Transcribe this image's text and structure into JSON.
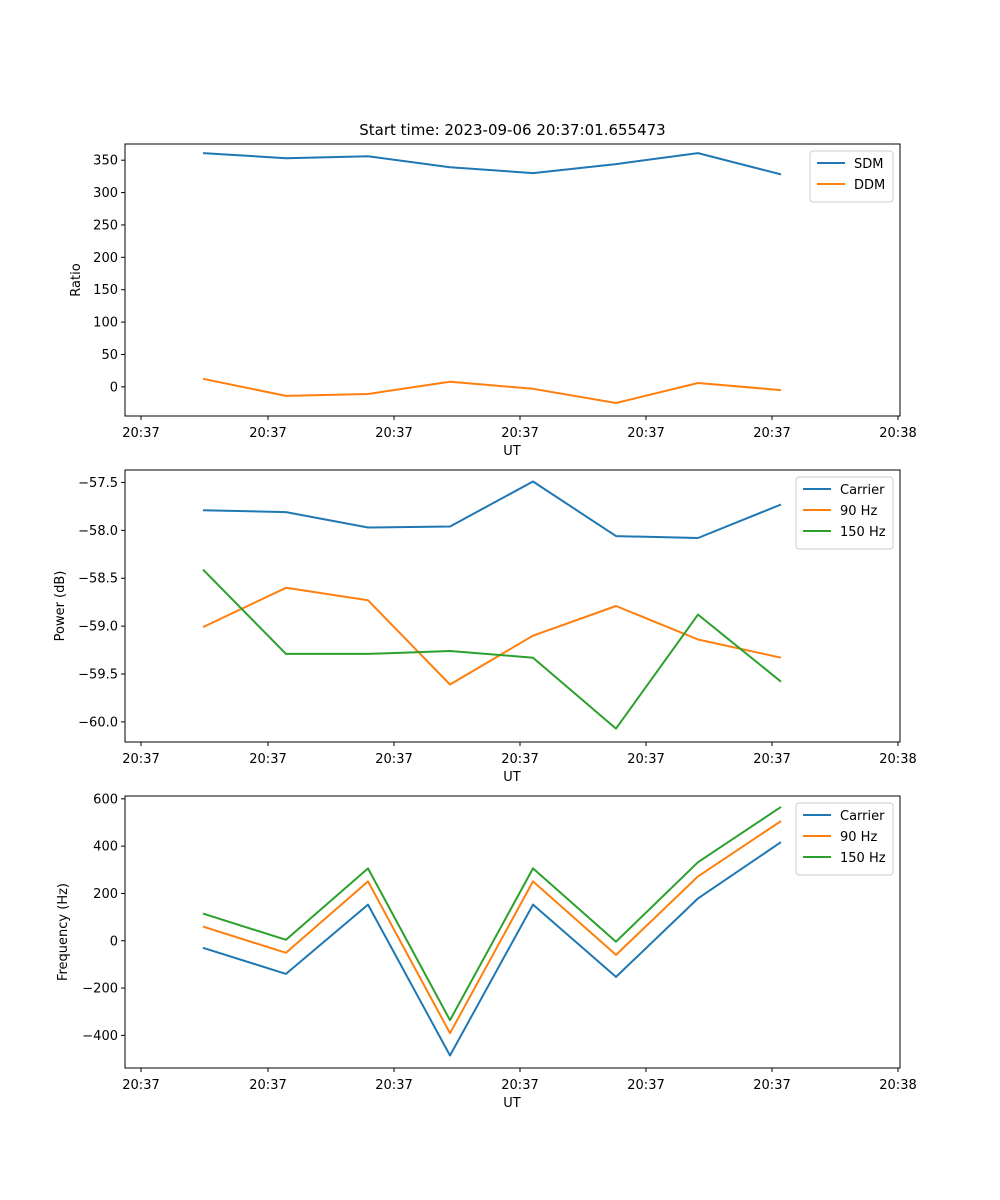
{
  "figure_title": "Start time: 2023-09-06 20:37:01.655473",
  "chart_data": [
    {
      "type": "line",
      "title": "Start time: 2023-09-06 20:37:01.655473",
      "xlabel": "UT",
      "ylabel": "Ratio",
      "x_tick_labels": [
        "20:37",
        "20:37",
        "20:37",
        "20:37",
        "20:37",
        "20:37",
        "20:38"
      ],
      "y_ticks": [
        0,
        50,
        100,
        150,
        200,
        250,
        300,
        350
      ],
      "y_tick_labels": [
        "0",
        "50",
        "100",
        "150",
        "200",
        "250",
        "300",
        "350"
      ],
      "ylim": [
        -45,
        375
      ],
      "legend": "top-right",
      "grid": false,
      "series": [
        {
          "name": "SDM",
          "color": "#1f77b4",
          "values": [
            361,
            353,
            356,
            339,
            330,
            344,
            361,
            328
          ]
        },
        {
          "name": "DDM",
          "color": "#ff7f0e",
          "values": [
            12.5,
            -14,
            -11,
            8,
            -3,
            -25,
            6,
            -5
          ]
        }
      ]
    },
    {
      "type": "line",
      "title": "",
      "xlabel": "UT",
      "ylabel": "Power (dB)",
      "x_tick_labels": [
        "20:37",
        "20:37",
        "20:37",
        "20:37",
        "20:37",
        "20:37",
        "20:38"
      ],
      "y_ticks": [
        -60.0,
        -59.5,
        -59.0,
        -58.5,
        -58.0,
        -57.5
      ],
      "y_tick_labels": [
        "−60.0",
        "−59.5",
        "−59.0",
        "−58.5",
        "−58.0",
        "−57.5"
      ],
      "ylim": [
        -60.21,
        -57.37
      ],
      "legend": "top-right",
      "grid": false,
      "series": [
        {
          "name": "Carrier",
          "color": "#1f77b4",
          "values": [
            -57.79,
            -57.81,
            -57.97,
            -57.96,
            -57.49,
            -58.06,
            -58.08,
            -57.73
          ]
        },
        {
          "name": "90 Hz",
          "color": "#ff7f0e",
          "values": [
            -59.01,
            -58.6,
            -58.73,
            -59.61,
            -59.1,
            -58.79,
            -59.14,
            -59.33
          ]
        },
        {
          "name": "150 Hz",
          "color": "#2ca02c",
          "values": [
            -58.41,
            -59.29,
            -59.29,
            -59.26,
            -59.33,
            -60.07,
            -58.88,
            -59.58
          ]
        }
      ]
    },
    {
      "type": "line",
      "title": "",
      "xlabel": "UT",
      "ylabel": "Frequency (Hz)",
      "x_tick_labels": [
        "20:37",
        "20:37",
        "20:37",
        "20:37",
        "20:37",
        "20:37",
        "20:38"
      ],
      "y_ticks": [
        -400,
        -200,
        0,
        200,
        400,
        600
      ],
      "y_tick_labels": [
        "−400",
        "−200",
        "0",
        "200",
        "400",
        "600"
      ],
      "ylim": [
        -538,
        612
      ],
      "legend": "top-right",
      "grid": false,
      "series": [
        {
          "name": "Carrier",
          "color": "#1f77b4",
          "values": [
            -30,
            -140,
            153,
            -485,
            153,
            -153,
            179,
            417
          ]
        },
        {
          "name": "90 Hz",
          "color": "#ff7f0e",
          "values": [
            60,
            -51,
            251,
            -391,
            251,
            -60,
            272,
            506
          ]
        },
        {
          "name": "150 Hz",
          "color": "#2ca02c",
          "values": [
            115,
            4,
            306,
            -336,
            306,
            -4,
            332,
            566
          ]
        }
      ]
    }
  ]
}
